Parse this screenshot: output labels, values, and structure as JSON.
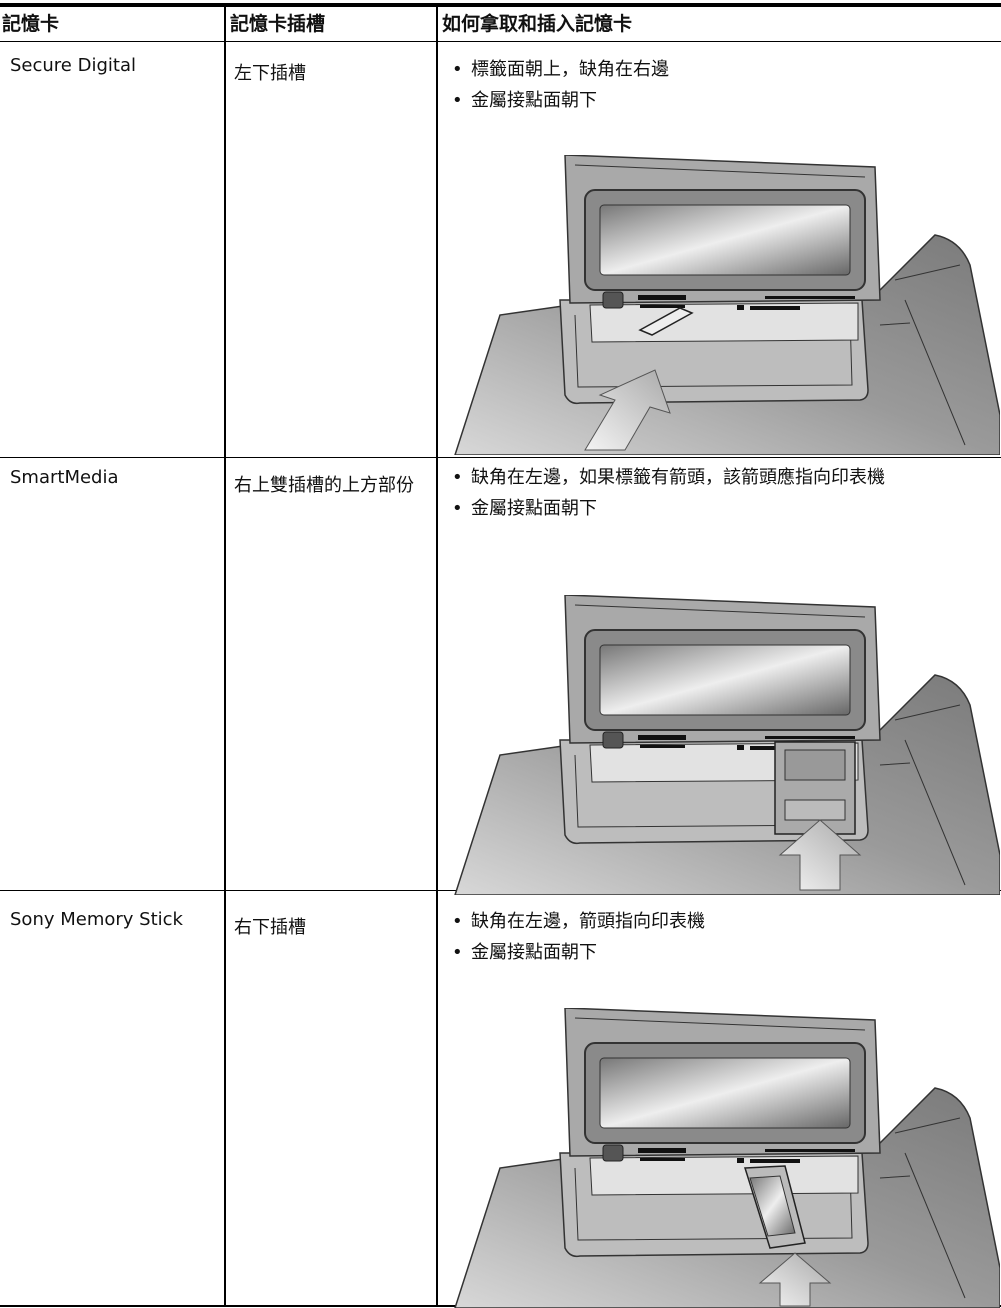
{
  "header": {
    "columns": [
      "記憶卡",
      "記憶卡插槽",
      "如何拿取和插入記憶卡"
    ]
  },
  "rows": [
    {
      "card": "Secure Digital",
      "slot": "左下插槽",
      "instructions": [
        "標籤面朝上，缺角在右邊",
        "金屬接點面朝下"
      ]
    },
    {
      "card": "SmartMedia",
      "slot": "右上雙插槽的上方部份",
      "instructions": [
        "缺角在左邊，如果標籤有箭頭，該箭頭應指向印表機",
        "金屬接點面朝下"
      ]
    },
    {
      "card": "Sony Memory Stick",
      "slot": "右下插槽",
      "instructions": [
        "缺角在左邊，箭頭指向印表機",
        "金屬接點面朝下"
      ]
    }
  ]
}
